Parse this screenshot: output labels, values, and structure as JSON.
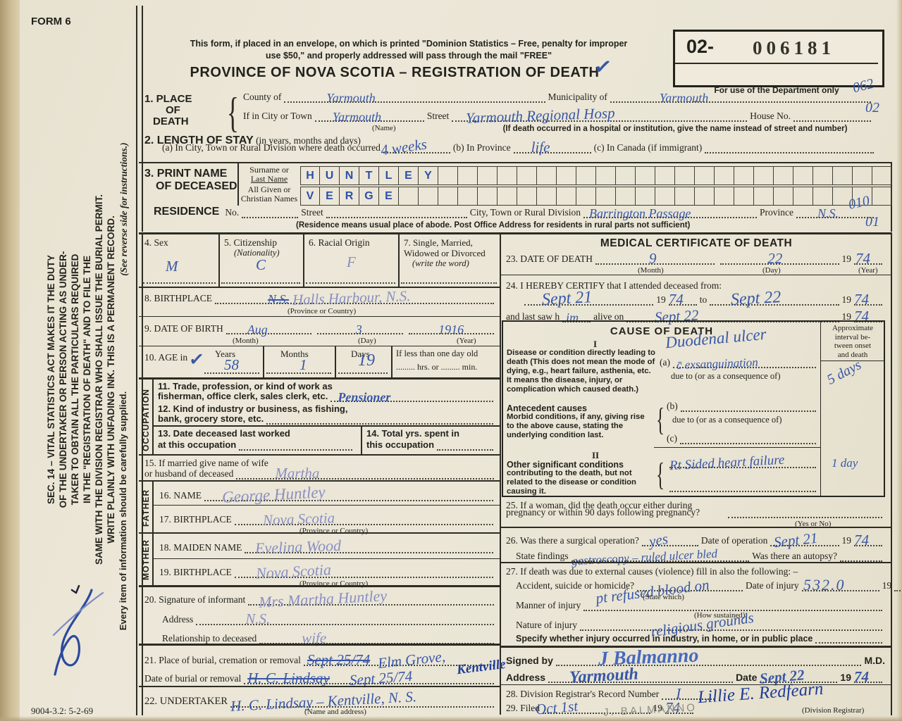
{
  "colors": {
    "paper": "#ebe6d7",
    "ink": "#22221c",
    "pen_blue": "#3857a6",
    "pen_faded": "#8a8fc0",
    "pen_dark": "#1f3c96",
    "pencil": "#8d8d85"
  },
  "header": {
    "form_no": "FORM 6",
    "notice_line1": "This form, if placed in an envelope, on which is printed \"Dominion Statistics – Free, penalty for improper",
    "notice_line2": "use $50,\" and properly addressed will pass through the mail \"FREE\"",
    "title": "PROVINCE OF NOVA SCOTIA – REGISTRATION OF DEATH",
    "check": "✓"
  },
  "dept_box": {
    "prefix": "02-",
    "number": "006181",
    "caption": "For use of the Department only",
    "code_top": "062",
    "code_mid": "02",
    "code_res_top": "010",
    "code_res_bot": "01"
  },
  "s1": {
    "l1": "1. PLACE",
    "l2": "OF",
    "l3": "DEATH",
    "county_label": "County of",
    "county_hw": "Yarmouth",
    "municipality_label": "Municipality of",
    "municipality_hw": "Yarmouth",
    "city_label": "If in City or Town",
    "city_hw": "Yarmouth",
    "name_cap": "(Name)",
    "street_label": "Street",
    "street_hw": "Yarmouth Regional Hosp",
    "house_label": "House No.",
    "hosp_cap": "(If death occurred in a hospital or institution, give the name instead of street and number)"
  },
  "s2": {
    "label": "2. LENGTH OF STAY",
    "sub": "(in years, months and days)",
    "a_label": "(a) In City, Town or Rural Division where death occurred",
    "a_hw": "4 weeks",
    "b_label": "(b) In Province",
    "b_hw": "life",
    "c_label": "(c) In Canada (if immigrant)"
  },
  "s3": {
    "label1": "3. PRINT NAME",
    "label2": "OF DECEASED",
    "surname_label1": "Surname or",
    "surname_label2": "Last Name",
    "given_label1": "All Given or",
    "given_label2": "Christian Names",
    "surname_letters": [
      "H",
      "U",
      "N",
      "T",
      "L",
      "E",
      "Y"
    ],
    "given_letters": [
      "V",
      "E",
      "R",
      "G",
      "E"
    ],
    "box_count": 30
  },
  "res": {
    "label": "RESIDENCE",
    "no_label": "No.",
    "street_label": "Street",
    "city_label": "City, Town or Rural Division",
    "city_hw": "Barrington Passage",
    "prov_label": "Province",
    "prov_hw": "N.S.",
    "cap": "(Residence means usual place of abode. Post Office Address for residents in rural parts not sufficient)"
  },
  "p4": {
    "label": "4. Sex",
    "hw": "M"
  },
  "p5": {
    "label": "5. Citizenship",
    "sub": "(Nationality)",
    "hw": "C"
  },
  "p6": {
    "label": "6. Racial Origin",
    "hw": "F"
  },
  "p7": {
    "label1": "7. Single, Married,",
    "label2": "Widowed or Divorced",
    "sub": "(write the word)"
  },
  "p8": {
    "label": "8. BIRTHPLACE",
    "hw_strike": "N.S.",
    "hw": "Halls Harbour, N.S.",
    "cap": "(Province or Country)"
  },
  "p9": {
    "label": "9. DATE OF BIRTH",
    "month_hw": "Aug",
    "month_cap": "(Month)",
    "day_hw": "3",
    "day_cap": "(Day)",
    "year_hw": "1916",
    "year_cap": "(Year)"
  },
  "p10": {
    "label": "10. AGE in",
    "check": "✓",
    "years_label": "Years",
    "years_hw": "58",
    "months_label": "Months",
    "months_hw": "1",
    "days_label": "Days",
    "days_hw": "19",
    "less_label": "If less than one day old",
    "less_sub": "......... hrs. or ......... min."
  },
  "occ": {
    "vlabel": "OCCUPATION",
    "t11a": "11. Trade, profession, or kind of work as",
    "t11b": "fisherman, office clerk, sales clerk, etc.",
    "t11_hw": "Pensioner",
    "t12a": "12. Kind of industry or business, as fishing,",
    "t12b": "bank, grocery store, etc.",
    "t13a": "13. Date deceased last worked",
    "t13b": "at this occupation",
    "t14a": "14. Total yrs. spent in",
    "t14b": "this occupation",
    "t15a": "15. If married give name of wife",
    "t15b": "or husband of deceased",
    "t15_hw": "Martha"
  },
  "father": {
    "vlabel": "FATHER",
    "name_label": "16. NAME",
    "name_hw": "George Huntley",
    "bp_label": "17. BIRTHPLACE",
    "bp_hw": "Nova Scotia",
    "cap": "(Province or Country)"
  },
  "mother": {
    "vlabel": "MOTHER",
    "maiden_label": "18. MAIDEN NAME",
    "maiden_hw": "Evelina Wood",
    "bp_label": "19. BIRTHPLACE",
    "bp_hw": "Nova Scotia",
    "cap": "(Province or Country)"
  },
  "s20": {
    "label": "20. Signature of informant",
    "hw": "Mrs Martha Huntley",
    "addr_label": "Address",
    "addr_hw": "N.S.",
    "rel_label": "Relationship to deceased",
    "rel_hw": "wife"
  },
  "s21": {
    "label": "21. Place of burial, cremation or removal",
    "hw_strike": "Sept 25/74",
    "hw": "Elm Grove,",
    "hw_over": "Kentville",
    "date_label": "Date of burial or removal",
    "date_strike": "H. C. Lindsay",
    "date_hw": "Sept 25/74"
  },
  "s22": {
    "label": "22. UNDERTAKER",
    "hw": "H. C. Lindsay – Kentville, N. S.",
    "cap": "(Name and address)"
  },
  "med": {
    "header": "MEDICAL CERTIFICATE OF DEATH",
    "d23_label": "23. DATE OF DEATH",
    "d23_month_hw": "9",
    "d23_month_cap": "(Month)",
    "d23_day_hw": "22",
    "d23_day_cap": "(Day)",
    "y19": "19",
    "d23_year_hw": "74",
    "d23_year_cap": "(Year)",
    "d24_label": "24. I HEREBY CERTIFY that I attended deceased from:",
    "from_hw": "Sept 21",
    "from_yr_hw": "74",
    "to_label": "to",
    "to_hw": "Sept 22",
    "to_yr_hw": "74",
    "last_label1": "and last saw h",
    "last_hw": "im",
    "last_label2": "alive on",
    "last_date_hw": "Sept 22",
    "last_yr_hw": "74"
  },
  "cause": {
    "header": "CAUSE OF DEATH",
    "int1": "Approximate",
    "int2": "interval be-",
    "int3": "tween onset",
    "int4": "and death",
    "r1": "I",
    "desc1": "Disease or condition directly leading to death (This does not mean the mode of dying, e.g., heart failure, asthenia, etc. It means the disease, injury, or complication which caused death.)",
    "a_label": "(a)",
    "a_hw_top": "Duodenal ulcer",
    "a_hw": "c̄ exsanguination",
    "due_to": "due to (or as a consequence of)",
    "a_interval_hw": "5 days",
    "ant_title": "Antecedent causes",
    "ant_desc": "Morbid conditions, if any, giving rise to the above cause, stating the underlying condition last.",
    "b_label": "(b)",
    "c_label": "(c)",
    "r2": "II",
    "other_title": "Other significant conditions",
    "other_desc": "contributing to the death, but not related to the disease or condition causing it.",
    "other_hw": "Rt Sided heart failure",
    "other_interval_hw": "1 day"
  },
  "s25": {
    "l1": "25. If a woman, did the death occur either during",
    "l2": "pregnancy or within 90 days following pregnancy?",
    "cap": "(Yes or No)"
  },
  "s26": {
    "label": "26. Was there a surgical operation?",
    "op_hw": "yes",
    "date_label": "Date of operation",
    "date_hw": "Sept 21",
    "y19": "19",
    "yr_hw": "74",
    "find_label": "State findings",
    "find_hw": "gastroscopy – ruled ulcer bled",
    "autopsy_label": "Was there an autopsy?"
  },
  "s27": {
    "l1": "27. If death was due to external causes (violence) fill in also the following: –",
    "accident_label": "Accident, suicide or homicide?",
    "state_cap": "(State which)",
    "injury_date_label": "Date of injury",
    "y19": "19",
    "manner_label": "Manner of injury",
    "manner_hw": "pt refused blood on",
    "code_hw": "532.0",
    "sustained_cap": "(How sustained)",
    "nature_label": "Nature of injury",
    "nature_hw": "religious grounds",
    "specify_label": "Specify whether injury occurred in industry, in home, or in public place"
  },
  "sig": {
    "signed_label": "Signed by",
    "signature_hw": "J Balmanno",
    "md": "M.D.",
    "addr_label": "Address",
    "addr_hw": "Yarmouth",
    "date_label": "Date",
    "date_hw": "Sept 22",
    "y19": "19",
    "yr_hw": "74"
  },
  "s28": {
    "label": "28. Division Registrar's Record Number",
    "hw": "I"
  },
  "s29": {
    "label": "29. Filed",
    "date_hw": "Oct 1st",
    "y19": "19",
    "yr_hw": "74",
    "registrar_hw": "Lillie E. Redfearn",
    "cap": "(Division Registrar)",
    "pencil": "J. BALMANNO"
  },
  "sidebar": {
    "sec14": [
      "SEC. 14 – VITAL STATISTICS ACT MAKES IT THE DUTY",
      "OF THE UNDERTAKER OR PERSON ACTING AS UNDER-",
      "TAKER TO OBTAIN ALL THE PARTICULARS REQUIRED",
      "IN THE \"REGISTRATION OF DEATH\" AND TO FILE THE",
      "SAME WITH THE DIVISION REGISTRAR WHO SHALL ISSUE THE BURIAL PERMIT.",
      "WRITE PLAINLY WITH UNFADING INK. THIS IS A PERMANENT RECORD."
    ],
    "note_italic": "(See reverse side for instructions.)",
    "note_bold": "Every item of information should be carefully supplied."
  },
  "footer": {
    "code": "9004-3.2: 5-2-69"
  }
}
